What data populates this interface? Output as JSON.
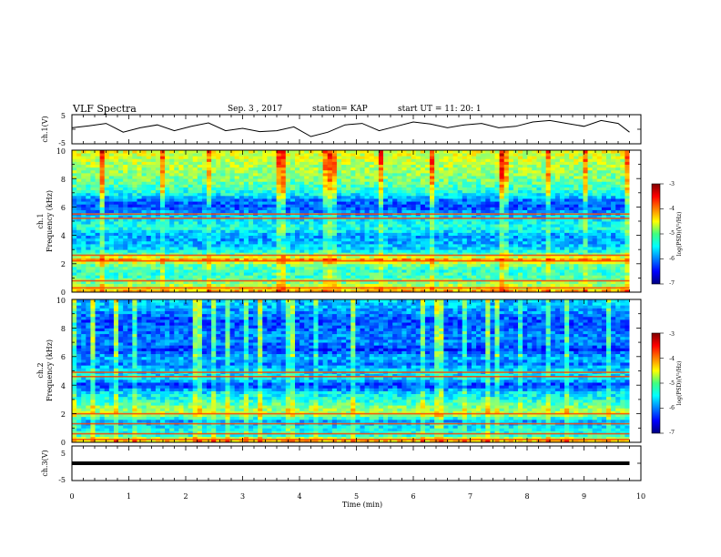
{
  "header": {
    "title": "VLF Spectra",
    "date": "Sep. 3  , 2017",
    "station": "station= KAP",
    "start_ut": "start  UT  =   11: 20: 1"
  },
  "chart_data": [
    {
      "type": "line",
      "panel": "ch1-waveform",
      "ylabel": "ch.1(V)",
      "yticks": [
        "5",
        "-5"
      ],
      "ylim": [
        -5,
        5
      ],
      "xlim": [
        0,
        10
      ],
      "x_end": 9.8,
      "description_note": "",
      "series": [
        {
          "x": [
            0,
            0.3,
            0.6,
            0.9,
            1.2,
            1.5,
            1.8,
            2.1,
            2.4,
            2.7,
            3.0,
            3.3,
            3.6,
            3.9,
            4.2,
            4.5,
            4.8,
            5.1,
            5.4,
            5.7,
            6.0,
            6.3,
            6.6,
            6.9,
            7.2,
            7.5,
            7.8,
            8.1,
            8.4,
            8.7,
            9.0,
            9.3,
            9.6,
            9.8
          ],
          "y": [
            0.5,
            1.2,
            2.0,
            -1.0,
            0.5,
            1.5,
            -0.5,
            1.0,
            2.2,
            -0.5,
            0.3,
            -0.8,
            -0.5,
            0.8,
            -2.5,
            -1.0,
            1.5,
            2.0,
            -0.5,
            1.0,
            2.5,
            1.8,
            0.5,
            1.5,
            2.0,
            0.5,
            1.0,
            2.5,
            3.0,
            2.0,
            1.0,
            3.0,
            2.0,
            -1.0
          ]
        }
      ]
    },
    {
      "type": "heatmap",
      "panel": "ch1-spectrogram",
      "ylabel_line1": "ch.1",
      "ylabel_line2": "Frequency  (kHz)",
      "yticks": [
        "0",
        "2",
        "4",
        "6",
        "8",
        "10"
      ],
      "ylim": [
        0,
        10
      ],
      "xlim": [
        0,
        10
      ],
      "x_end": 9.8,
      "colorbar": {
        "label": "log(PSD)(V²/Hz)",
        "ticks": [
          "-3",
          "-4",
          "-5",
          "-6",
          "-7"
        ],
        "range": [
          -7,
          -3
        ]
      },
      "frequency_profile_log_psd": [
        [
          0.1,
          -4.2
        ],
        [
          0.5,
          -4.8
        ],
        [
          1.0,
          -5.2
        ],
        [
          1.5,
          -5.3
        ],
        [
          2.0,
          -5.0
        ],
        [
          2.3,
          -4.1
        ],
        [
          2.6,
          -5.0
        ],
        [
          3.0,
          -5.6
        ],
        [
          3.5,
          -5.8
        ],
        [
          4.0,
          -5.9
        ],
        [
          4.5,
          -5.4
        ],
        [
          5.0,
          -5.5
        ],
        [
          5.5,
          -5.8
        ],
        [
          6.0,
          -6.2
        ],
        [
          6.5,
          -6.0
        ],
        [
          7.0,
          -5.4
        ],
        [
          7.5,
          -5.2
        ],
        [
          8.0,
          -5.0
        ],
        [
          8.5,
          -4.9
        ],
        [
          9.0,
          -4.8
        ],
        [
          9.5,
          -4.7
        ],
        [
          9.9,
          -4.6
        ]
      ],
      "line_bands_khz": [
        0.3,
        0.8,
        2.2,
        2.6,
        5.2,
        5.5
      ]
    },
    {
      "type": "heatmap",
      "panel": "ch2-spectrogram",
      "ylabel_line1": "ch.2",
      "ylabel_line2": "Frequency  (kHz)",
      "yticks": [
        "0",
        "2",
        "4",
        "6",
        "8",
        "10"
      ],
      "ylim": [
        0,
        10
      ],
      "xlim": [
        0,
        10
      ],
      "x_end": 9.8,
      "colorbar": {
        "label": "log(PSD)(V²/Hz)",
        "ticks": [
          "-3",
          "-4",
          "-5",
          "-6",
          "-7"
        ],
        "range": [
          -7,
          -3
        ]
      },
      "frequency_profile_log_psd": [
        [
          0.1,
          -4.3
        ],
        [
          0.5,
          -5.3
        ],
        [
          1.0,
          -5.5
        ],
        [
          1.5,
          -5.8
        ],
        [
          2.0,
          -4.8
        ],
        [
          2.5,
          -5.0
        ],
        [
          3.0,
          -5.4
        ],
        [
          3.5,
          -5.6
        ],
        [
          4.0,
          -6.3
        ],
        [
          4.5,
          -5.6
        ],
        [
          5.0,
          -5.6
        ],
        [
          5.5,
          -6.0
        ],
        [
          6.0,
          -5.8
        ],
        [
          6.5,
          -6.3
        ],
        [
          7.0,
          -6.0
        ],
        [
          7.5,
          -6.0
        ],
        [
          8.0,
          -6.1
        ],
        [
          8.5,
          -6.2
        ],
        [
          9.0,
          -6.0
        ],
        [
          9.5,
          -5.8
        ],
        [
          9.9,
          -5.7
        ]
      ],
      "line_bands_khz": [
        0.2,
        0.6,
        1.3,
        2.0,
        4.6,
        4.9
      ]
    },
    {
      "type": "line",
      "panel": "ch3-waveform",
      "ylabel": "ch.3(V)",
      "yticks": [
        "5",
        "-5"
      ],
      "ylim": [
        -5,
        5
      ],
      "xlim": [
        0,
        10
      ],
      "x_end": 9.8,
      "series": [
        {
          "x": [
            0,
            9.8
          ],
          "y": [
            0,
            0
          ]
        }
      ]
    }
  ],
  "x_axis": {
    "label": "Time  (min)",
    "ticks": [
      "0",
      "1",
      "2",
      "3",
      "4",
      "5",
      "6",
      "7",
      "8",
      "9",
      "10"
    ]
  }
}
